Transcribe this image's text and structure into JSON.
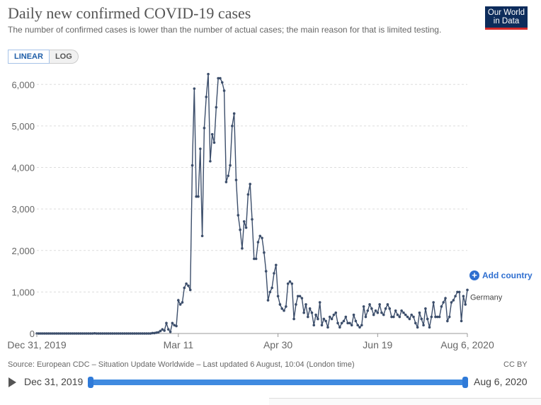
{
  "title": "Daily new confirmed COVID-19 cases",
  "subtitle": "The number of confirmed cases is lower than the number of actual cases; the main reason for that is limited testing.",
  "logo": {
    "line1": "Our World",
    "line2": "in Data"
  },
  "scale_toggle": {
    "linear": "LINEAR",
    "log": "LOG"
  },
  "add_country_label": "Add country",
  "source_text": "Source: European CDC – Situation Update Worldwide – Last updated 6 August, 10:04 (London time)",
  "license_text": "CC BY",
  "timeline": {
    "start": "Dec 31, 2019",
    "end": "Aug 6, 2020"
  },
  "chart_data": {
    "type": "line",
    "title": "Daily new confirmed COVID-19 cases",
    "x_start": "Dec 31, 2019",
    "x_end": "Aug 6, 2020",
    "x_ticks": [
      "Dec 31, 2019",
      "Mar 11",
      "Apr 30",
      "Jun 19",
      "Aug 6, 2020"
    ],
    "y_ticks": [
      "0",
      "1,000",
      "2,000",
      "3,000",
      "4,000",
      "5,000",
      "6,000"
    ],
    "ylim": [
      0,
      6500
    ],
    "grid": true,
    "color": "#3c4e6b",
    "series": [
      {
        "name": "Germany",
        "values": [
          0,
          0,
          0,
          0,
          0,
          0,
          0,
          0,
          0,
          0,
          0,
          0,
          0,
          0,
          0,
          0,
          0,
          0,
          0,
          0,
          0,
          0,
          0,
          0,
          0,
          0,
          0,
          0,
          0,
          4,
          0,
          0,
          0,
          0,
          0,
          0,
          0,
          0,
          0,
          0,
          0,
          0,
          0,
          0,
          0,
          0,
          0,
          0,
          0,
          0,
          0,
          0,
          0,
          0,
          0,
          0,
          0,
          0,
          10,
          10,
          20,
          30,
          60,
          100,
          70,
          250,
          100,
          40,
          250,
          200,
          180,
          800,
          700,
          750,
          1100,
          1200,
          1150,
          1050,
          4050,
          5900,
          3300,
          3300,
          4450,
          2350,
          4950,
          5700,
          6250,
          4150,
          4800,
          4600,
          5450,
          6150,
          6150,
          6050,
          5850,
          3650,
          3800,
          4050,
          5000,
          5300,
          3700,
          2850,
          2500,
          2050,
          2700,
          2550,
          3350,
          3600,
          2750,
          1800,
          1800,
          2200,
          2350,
          2300,
          1950,
          1500,
          800,
          1000,
          1100,
          1450,
          1650,
          900,
          700,
          600,
          550,
          650,
          1200,
          1250,
          1200,
          350,
          700,
          900,
          900,
          850,
          500,
          700,
          400,
          600,
          500,
          200,
          450,
          350,
          750,
          200,
          350,
          300,
          150,
          400,
          350,
          450,
          500,
          250,
          150,
          250,
          300,
          400,
          250,
          250,
          200,
          450,
          300,
          200,
          150,
          200,
          650,
          400,
          550,
          700,
          600,
          450,
          550,
          500,
          700,
          500,
          450,
          600,
          700,
          600,
          400,
          400,
          550,
          450,
          400,
          550,
          500,
          450,
          400,
          350,
          450,
          400,
          250,
          150,
          500,
          350,
          200,
          600,
          350,
          150,
          400,
          750,
          400,
          400,
          400,
          650,
          750,
          850,
          300,
          400,
          750,
          800,
          900,
          1000,
          1000,
          300,
          900,
          700,
          1050
        ]
      }
    ],
    "series_label": "Germany"
  }
}
